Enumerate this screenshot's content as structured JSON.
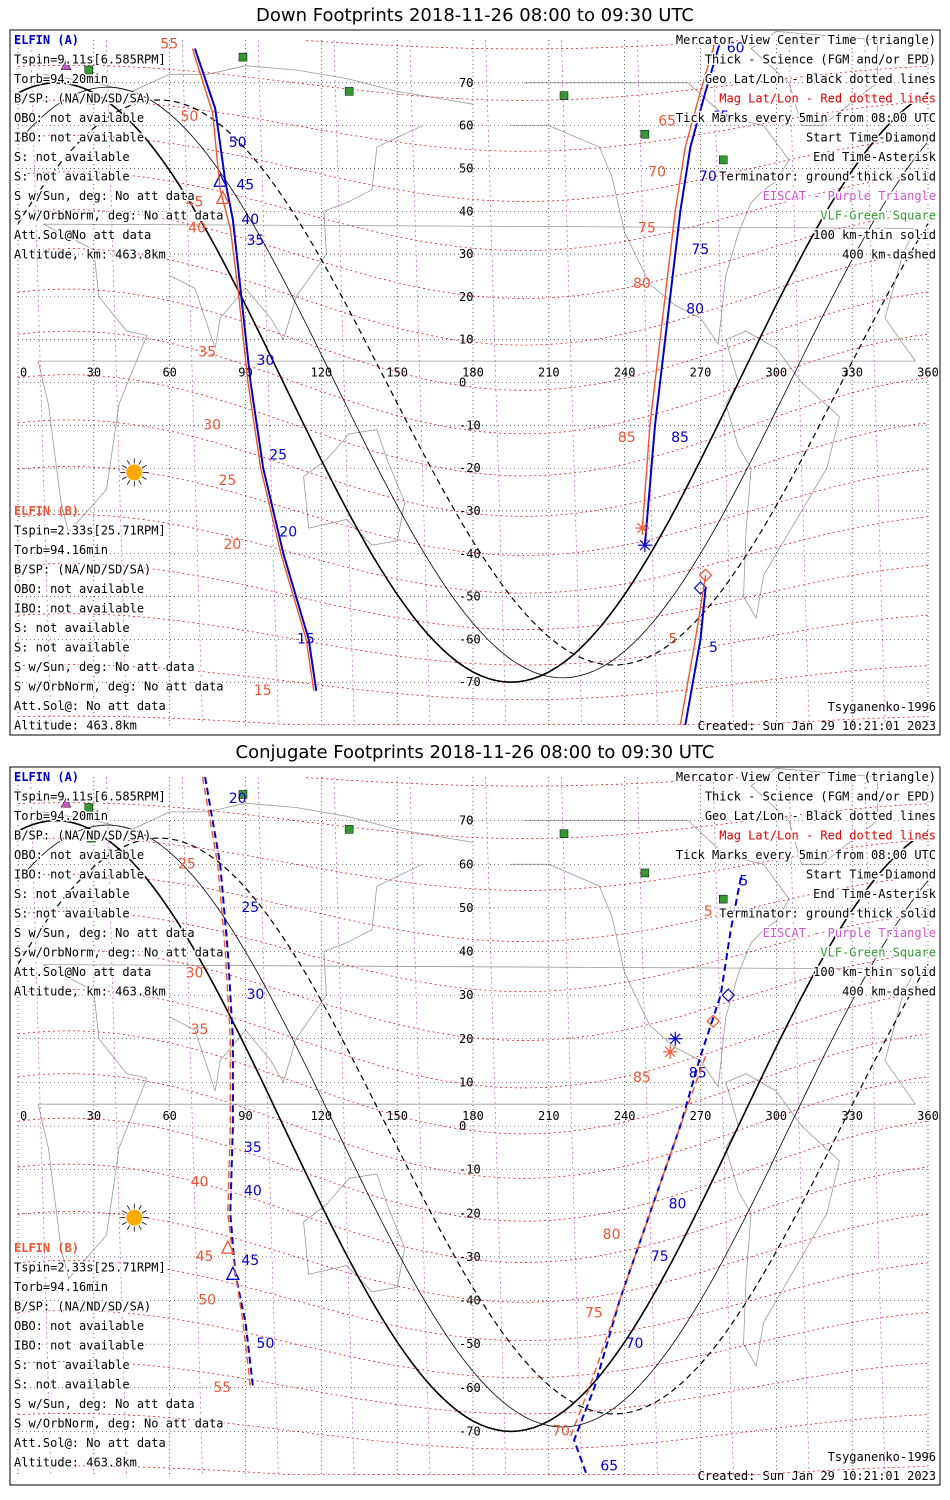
{
  "colors": {
    "elfin_a": "#0000cc",
    "elfin_b": "#ee5533",
    "mag_grid": "#dd0000",
    "geo_grid": "#000000",
    "eiscat": "#cc55cc",
    "vlf": "#339933",
    "sun": "#ffaa00",
    "coast": "#999999"
  },
  "panels": [
    {
      "id": "down",
      "title": "Down Footprints 2018-11-26 08:00 to 09:30 UTC",
      "elfin_a": {
        "name": "ELFIN (A)",
        "lines": [
          "Tspin=9.11s[6.585RPM]",
          "Torb=94.20min",
          "B/SP: (NA/ND/SD/SA)",
          "OBO: not available",
          "IBO: not available",
          "S: not available",
          "S: not available",
          "S w/Sun, deg: No att data",
          "S w/OrbNorm, deg: No att data",
          "Att.Sol@No att data",
          "Altitude, km: 463.8km"
        ]
      },
      "elfin_b": {
        "name": "ELFIN (B)",
        "lines": [
          "Tspin=2.33s[25.71RPM]",
          "Torb=94.16min",
          "B/SP: (NA/ND/SD/SA)",
          "OBO: not available",
          "IBO: not available",
          "S: not available",
          "S: not available",
          "S w/Sun, deg: No att data",
          "S w/OrbNorm, deg: No att data",
          "Att.Sol@: No att data",
          "Altitude: 463.8km"
        ]
      },
      "legend": [
        "Mercator View Center Time (triangle)",
        "Thick - Science (FGM and/or EPD)",
        "Geo Lat/Lon - Black dotted lines",
        "Mag Lat/Lon - Red dotted lines",
        "Tick Marks every 5min from 08:00 UTC",
        "Start Time-Diamond",
        "End Time-Asterisk",
        "Terminator: ground-thick solid",
        "EISCAT - Purple Triangle",
        "VLF-Green Square",
        "100 km-thin solid",
        "400 km-dashed"
      ],
      "model": "Tsyganenko-1996",
      "created": "Created: Sun Jan 29 10:21:01 2023"
    },
    {
      "id": "conjugate",
      "title": "Conjugate Footprints 2018-11-26 08:00 to 09:30 UTC",
      "elfin_a": {
        "name": "ELFIN (A)",
        "lines": [
          "Tspin=9.11s[6.585RPM]",
          "Torb=94.20min",
          "B/SP: (NA/ND/SD/SA)",
          "OBO: not available",
          "IBO: not available",
          "S: not available",
          "S: not available",
          "S w/Sun, deg: No att data",
          "S w/OrbNorm, deg: No att data",
          "Att.Sol@No att data",
          "Altitude, km: 463.8km"
        ]
      },
      "elfin_b": {
        "name": "ELFIN (B)",
        "lines": [
          "Tspin=2.33s[25.71RPM]",
          "Torb=94.16min",
          "B/SP: (NA/ND/SD/SA)",
          "OBO: not available",
          "IBO: not available",
          "S: not available",
          "S: not available",
          "S w/Sun, deg: No att data",
          "S w/OrbNorm, deg: No att data",
          "Att.Sol@: No att data",
          "Altitude: 463.8km"
        ]
      },
      "legend": [
        "Mercator View Center Time (triangle)",
        "Thick - Science (FGM and/or EPD)",
        "Geo Lat/Lon - Black dotted lines",
        "Mag Lat/Lon - Red dotted lines",
        "Tick Marks every 5min from 08:00 UTC",
        "Start Time-Diamond",
        "End Time-Asterisk",
        "Terminator: ground-thick solid",
        "EISCAT - Purple Triangle",
        "VLF-Green Square",
        "100 km-thin solid",
        "400 km-dashed"
      ],
      "model": "Tsyganenko-1996",
      "created": "Created: Sun Jan 29 10:21:01 2023"
    }
  ],
  "chart_data": [
    {
      "type": "scatter",
      "title": "Down Footprints 2018-11-26 08:00 to 09:30 UTC",
      "xlim": [
        0,
        360
      ],
      "ylim": [
        -80,
        80
      ],
      "x_ticks": [
        0,
        30,
        60,
        90,
        120,
        150,
        180,
        210,
        240,
        270,
        300,
        330,
        360
      ],
      "y_ticks": [
        70,
        60,
        50,
        40,
        30,
        20,
        10,
        0,
        -10,
        -20,
        -30,
        -40,
        -50,
        -60,
        -70
      ],
      "grid": true,
      "sun": {
        "lon": 46,
        "lat": -21
      },
      "vlf_stations": [
        [
          89,
          76
        ],
        [
          28,
          73
        ],
        [
          29,
          66
        ],
        [
          131,
          68
        ],
        [
          216,
          67
        ],
        [
          248,
          58
        ],
        [
          279,
          52
        ]
      ],
      "eiscat": [
        [
          19,
          74
        ]
      ],
      "terminators": {
        "ground": {
          "amplitude": 70,
          "phase": 0
        },
        "km100": {
          "amplitude": 69,
          "phase": 9
        },
        "km400": {
          "amplitude": 66,
          "phase": 28
        }
      },
      "series": [
        {
          "name": "ELFIN (A)",
          "track": [
            [
              70,
              78
            ],
            [
              78,
              64
            ],
            [
              82,
              47
            ],
            [
              85,
              38
            ],
            [
              88,
              22
            ],
            [
              92,
              0
            ],
            [
              97,
              -20
            ],
            [
              105,
              -40
            ],
            [
              115,
              -60
            ],
            [
              118,
              -72
            ]
          ],
          "ticks": [
            [
              "50",
              81,
              56
            ],
            [
              "45",
              84,
              46
            ],
            [
              "40",
              86,
              38
            ],
            [
              "35",
              88,
              33
            ],
            [
              "30",
              92,
              5
            ],
            [
              "25",
              97,
              -17
            ],
            [
              "20",
              101,
              -35
            ],
            [
              "15",
              108,
              -60
            ]
          ],
          "track2": [
            [
              278,
              80
            ],
            [
              272,
              68
            ],
            [
              266,
              55
            ],
            [
              262,
              40
            ],
            [
              258,
              20
            ],
            [
              252,
              -10
            ],
            [
              248,
              -38
            ]
          ],
          "ticks2": [
            [
              "60",
              278,
              78
            ],
            [
              "65",
              272,
              62
            ],
            [
              "70",
              267,
              48
            ],
            [
              "75",
              264,
              31
            ],
            [
              "80",
              262,
              17
            ],
            [
              "85",
              256,
              -13
            ]
          ],
          "track3": [
            [
              272,
              -48
            ],
            [
              270,
              -60
            ],
            [
              264,
              -80
            ]
          ],
          "ticks3": [
            [
              "5",
              271,
              -62
            ]
          ],
          "start": [
            270,
            -48
          ],
          "end": [
            248,
            -38
          ],
          "center": [
            80,
            47
          ]
        },
        {
          "name": "ELFIN (B)",
          "track": [
            [
              69,
              78
            ],
            [
              77,
              63
            ],
            [
              80,
              45
            ],
            [
              84,
              36
            ],
            [
              87,
              22
            ],
            [
              91,
              0
            ],
            [
              96,
              -20
            ],
            [
              104,
              -40
            ],
            [
              114,
              -60
            ],
            [
              117,
              -72
            ]
          ],
          "ticks": [
            [
              "55",
              65,
              79
            ],
            [
              "50",
              73,
              62
            ],
            [
              "45",
              75,
              42
            ],
            [
              "40",
              76,
              36
            ],
            [
              "35",
              80,
              7
            ],
            [
              "30",
              82,
              -10
            ],
            [
              "25",
              88,
              -23
            ],
            [
              "20",
              90,
              -38
            ],
            [
              "15",
              102,
              -72
            ]
          ],
          "track2": [
            [
              276,
              80
            ],
            [
              270,
              68
            ],
            [
              264,
              55
            ],
            [
              260,
              40
            ],
            [
              256,
              20
            ],
            [
              250,
              -10
            ],
            [
              247,
              -34
            ]
          ],
          "ticks2": [
            [
              "65",
              262,
              61
            ],
            [
              "70",
              258,
              49
            ],
            [
              "75",
              254,
              36
            ],
            [
              "80",
              252,
              23
            ],
            [
              "85",
              246,
              -13
            ]
          ],
          "track3": [
            [
              272,
              -45
            ],
            [
              268,
              -60
            ],
            [
              262,
              -80
            ]
          ],
          "ticks3": [
            [
              "5",
              266,
              -60
            ]
          ],
          "start": [
            272,
            -45
          ],
          "end": [
            247,
            -34
          ],
          "center": [
            81,
            43
          ]
        }
      ]
    },
    {
      "type": "scatter",
      "title": "Conjugate Footprints 2018-11-26 08:00 to 09:30 UTC",
      "xlim": [
        0,
        360
      ],
      "ylim": [
        -80,
        80
      ],
      "x_ticks": [
        0,
        30,
        60,
        90,
        120,
        150,
        180,
        210,
        240,
        270,
        300,
        330,
        360
      ],
      "y_ticks": [
        70,
        60,
        50,
        40,
        30,
        20,
        10,
        0,
        -10,
        -20,
        -30,
        -40,
        -50,
        -60,
        -70
      ],
      "grid": true,
      "sun": {
        "lon": 46,
        "lat": -21
      },
      "vlf_stations": [
        [
          89,
          76
        ],
        [
          28,
          73
        ],
        [
          29,
          66
        ],
        [
          131,
          68
        ],
        [
          216,
          67
        ],
        [
          248,
          58
        ],
        [
          279,
          52
        ]
      ],
      "eiscat": [
        [
          19,
          74
        ]
      ],
      "terminators": {
        "ground": {
          "amplitude": 70,
          "phase": 0
        },
        "km100": {
          "amplitude": 69,
          "phase": 9
        },
        "km400": {
          "amplitude": 66,
          "phase": 28
        }
      },
      "series": [
        {
          "name": "ELFIN (A)",
          "track": [
            [
              74,
              80
            ],
            [
              80,
              60
            ],
            [
              83,
              40
            ],
            [
              85,
              20
            ],
            [
              85,
              0
            ],
            [
              84,
              -20
            ],
            [
              86,
              -34
            ],
            [
              90,
              -45
            ],
            [
              93,
              -60
            ]
          ],
          "ticks": [
            [
              "20",
              81,
              75
            ],
            [
              "25",
              86,
              50
            ],
            [
              "30",
              88,
              30
            ],
            [
              "35",
              87,
              -5
            ],
            [
              "40",
              87,
              -15
            ],
            [
              "45",
              86,
              -31
            ],
            [
              "50",
              92,
              -50
            ]
          ],
          "track2": [
            [
              286,
              57
            ],
            [
              282,
              45
            ],
            [
              278,
              30
            ],
            [
              270,
              16
            ],
            [
              262,
              0
            ],
            [
              250,
              -20
            ],
            [
              238,
              -40
            ],
            [
              228,
              -60
            ],
            [
              220,
              -72
            ],
            [
              225,
              -80
            ]
          ],
          "ticks2": [
            [
              "5",
              283,
              56
            ],
            [
              "85",
              263,
              12
            ],
            [
              "80",
              255,
              -18
            ],
            [
              "75",
              248,
              -30
            ],
            [
              "70",
              238,
              -50
            ],
            [
              "65",
              228,
              -78
            ]
          ],
          "start": [
            281,
            30
          ],
          "end": [
            260,
            20
          ],
          "center": [
            85,
            -34
          ]
        },
        {
          "name": "ELFIN (B)",
          "track": [
            [
              73,
              80
            ],
            [
              79,
              60
            ],
            [
              82,
              40
            ],
            [
              84,
              20
            ],
            [
              84,
              0
            ],
            [
              83,
              -20
            ],
            [
              85,
              -30
            ],
            [
              89,
              -45
            ],
            [
              92,
              -60
            ]
          ],
          "ticks": [
            [
              "25",
              72,
              60
            ],
            [
              "30",
              75,
              35
            ],
            [
              "35",
              77,
              22
            ],
            [
              "40",
              77,
              -13
            ],
            [
              "45",
              79,
              -30
            ],
            [
              "50",
              80,
              -40
            ],
            [
              "55",
              86,
              -60
            ]
          ],
          "track2": [
            [
              272,
              16
            ],
            [
              262,
              0
            ],
            [
              250,
              -20
            ],
            [
              238,
              -40
            ],
            [
              226,
              -60
            ],
            [
              218,
              -72
            ]
          ],
          "ticks2": [
            [
              "5",
              280,
              49
            ],
            [
              "85",
              252,
              11
            ],
            [
              "80",
              240,
              -25
            ],
            [
              "75",
              233,
              -43
            ],
            [
              "70",
              220,
              -70
            ]
          ],
          "start": [
            275,
            24
          ],
          "end": [
            258,
            17
          ],
          "center": [
            83,
            -28
          ]
        }
      ]
    }
  ]
}
